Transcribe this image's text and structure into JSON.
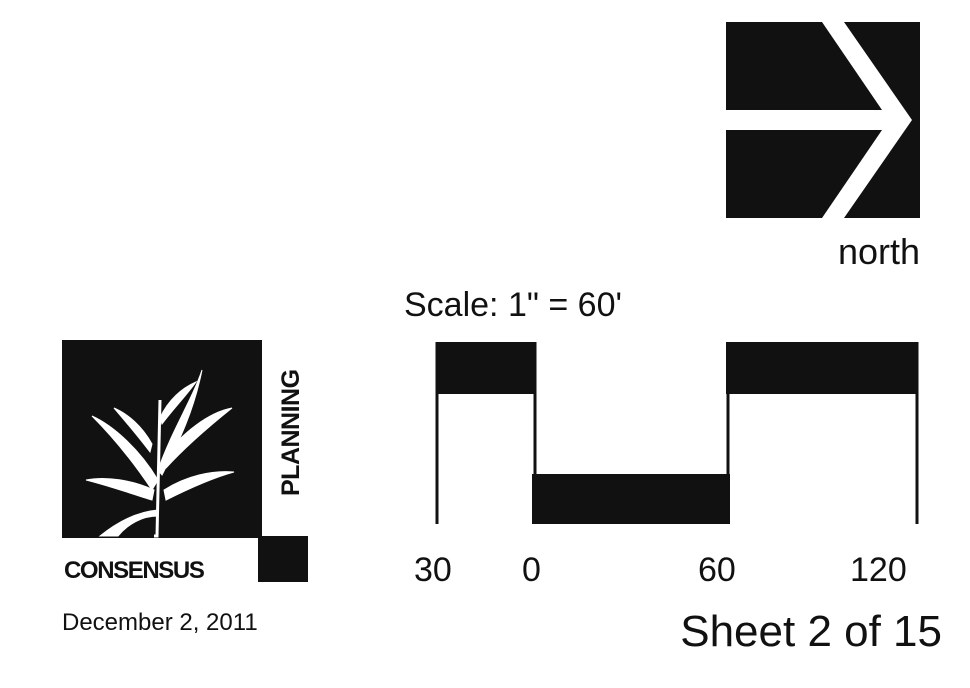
{
  "north_arrow": {
    "label": "north"
  },
  "scale": {
    "label": "Scale: 1\" = 60'",
    "ticks": [
      "30",
      "0",
      "60",
      "120"
    ]
  },
  "logo": {
    "word_bottom": "CONSENSUS",
    "word_side": "PLANNING"
  },
  "date": "December 2, 2011",
  "sheet": "Sheet 2 of 15",
  "colors": {
    "ink": "#111111",
    "paper": "#ffffff"
  }
}
